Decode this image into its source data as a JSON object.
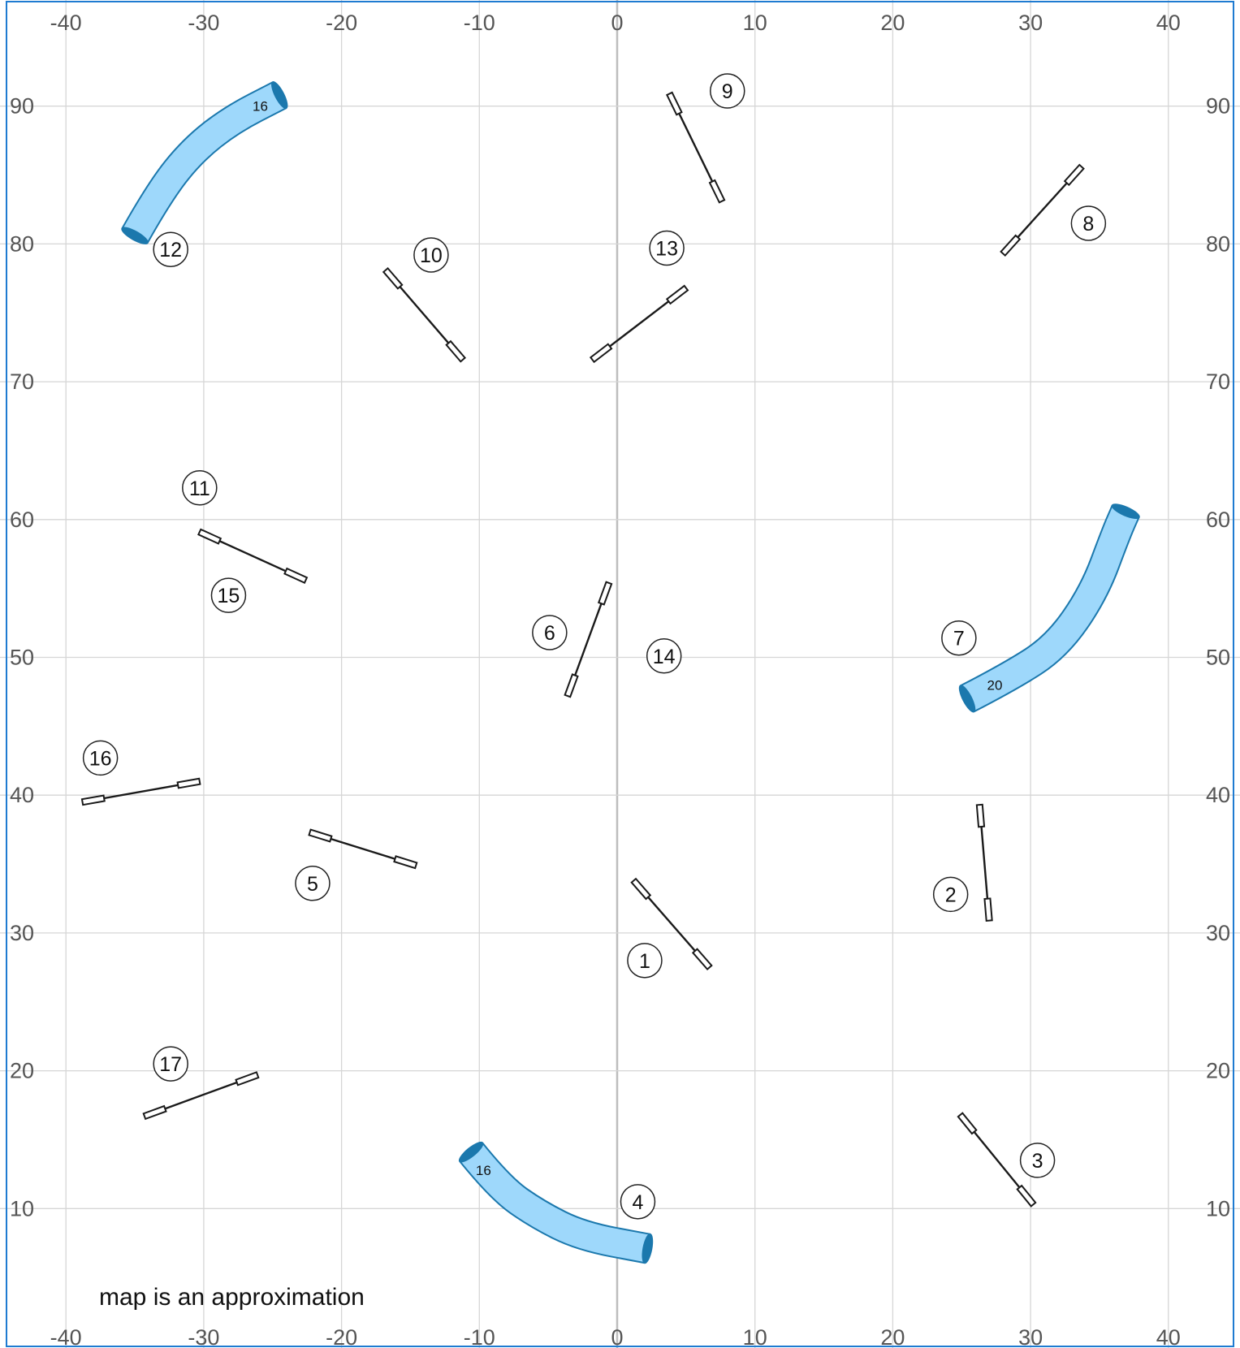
{
  "map": {
    "caption": "map is an approximation",
    "border_color": "#1f7bd1",
    "grid_color": "#d6d6d6",
    "axis_color": "#bdbdbd",
    "tunnel_fill": "#9ed8fb",
    "tunnel_stroke": "#1b78ad",
    "x_range": [
      -42,
      42
    ],
    "y_range": [
      4,
      97
    ],
    "x_ticks": [
      -40,
      -30,
      -20,
      -10,
      0,
      10,
      20,
      30,
      40
    ],
    "y_ticks": [
      10,
      20,
      30,
      40,
      50,
      60,
      70,
      80,
      90
    ],
    "x_tick_labels": [
      "-40",
      "-30",
      "-20",
      "-10",
      "0",
      "10",
      "20",
      "30",
      "40"
    ],
    "y_tick_labels": [
      "10",
      "20",
      "30",
      "40",
      "50",
      "60",
      "70",
      "80",
      "90"
    ]
  },
  "jumps": [
    {
      "id": "jump-1",
      "from": [
        1.2,
        33.8
      ],
      "to": [
        6.7,
        27.5
      ]
    },
    {
      "id": "jump-2",
      "from": [
        26.3,
        39.3
      ],
      "to": [
        27.0,
        30.9
      ]
    },
    {
      "id": "jump-3",
      "from": [
        24.9,
        16.8
      ],
      "to": [
        30.2,
        10.3
      ]
    },
    {
      "id": "jump-5",
      "from": [
        -22.3,
        37.3
      ],
      "to": [
        -14.6,
        34.9
      ]
    },
    {
      "id": "jump-6",
      "from": [
        -0.6,
        55.4
      ],
      "to": [
        -3.6,
        47.2
      ]
    },
    {
      "id": "jump-8",
      "from": [
        33.7,
        85.6
      ],
      "to": [
        28.0,
        79.3
      ]
    },
    {
      "id": "jump-9",
      "from": [
        3.8,
        90.9
      ],
      "to": [
        7.6,
        83.1
      ]
    },
    {
      "id": "jump-10",
      "from": [
        -16.8,
        78.1
      ],
      "to": [
        -11.2,
        71.6
      ]
    },
    {
      "id": "jump-11-15",
      "from": [
        -30.3,
        59.1
      ],
      "to": [
        -22.6,
        55.6
      ]
    },
    {
      "id": "jump-13",
      "from": [
        5.0,
        76.8
      ],
      "to": [
        -1.8,
        71.6
      ]
    },
    {
      "id": "jump-16",
      "from": [
        -38.8,
        39.5
      ],
      "to": [
        -30.3,
        41.0
      ]
    },
    {
      "id": "jump-17",
      "from": [
        -34.3,
        16.7
      ],
      "to": [
        -26.1,
        19.7
      ]
    }
  ],
  "tunnels": [
    {
      "id": "tunnel-12",
      "length_label": "16",
      "label_at": [
        -25.9,
        90.0
      ],
      "path": [
        [
          -35.0,
          80.6
        ],
        [
          -33.2,
          83.8
        ],
        [
          -30.8,
          86.8
        ],
        [
          -28.0,
          89.0
        ],
        [
          -24.5,
          90.8
        ]
      ]
    },
    {
      "id": "tunnel-4",
      "length_label": "16",
      "label_at": [
        -9.7,
        12.8
      ],
      "path": [
        [
          -10.6,
          14.1
        ],
        [
          -8.5,
          11.5
        ],
        [
          -5.8,
          9.6
        ],
        [
          -2.6,
          8.0
        ],
        [
          2.2,
          7.1
        ]
      ]
    },
    {
      "id": "tunnel-7",
      "length_label": "20",
      "label_at": [
        27.4,
        48.0
      ],
      "path": [
        [
          25.4,
          47.0
        ],
        [
          28.5,
          48.6
        ],
        [
          31.9,
          50.8
        ],
        [
          34.6,
          54.7
        ],
        [
          36.2,
          59.0
        ],
        [
          36.9,
          60.6
        ]
      ]
    }
  ],
  "markers": [
    {
      "id": "marker-1",
      "label": "1",
      "at": [
        2.0,
        28.0
      ]
    },
    {
      "id": "marker-2",
      "label": "2",
      "at": [
        24.2,
        32.8
      ]
    },
    {
      "id": "marker-3",
      "label": "3",
      "at": [
        30.5,
        13.5
      ]
    },
    {
      "id": "marker-4",
      "label": "4",
      "at": [
        1.5,
        10.5
      ]
    },
    {
      "id": "marker-5",
      "label": "5",
      "at": [
        -22.1,
        33.6
      ]
    },
    {
      "id": "marker-6",
      "label": "6",
      "at": [
        -4.9,
        51.8
      ]
    },
    {
      "id": "marker-7",
      "label": "7",
      "at": [
        24.8,
        51.4
      ]
    },
    {
      "id": "marker-8",
      "label": "8",
      "at": [
        34.2,
        81.5
      ]
    },
    {
      "id": "marker-9",
      "label": "9",
      "at": [
        8.0,
        91.1
      ]
    },
    {
      "id": "marker-10",
      "label": "10",
      "at": [
        -13.5,
        79.2
      ]
    },
    {
      "id": "marker-11",
      "label": "11",
      "at": [
        -30.3,
        62.3
      ]
    },
    {
      "id": "marker-12",
      "label": "12",
      "at": [
        -32.4,
        79.6
      ]
    },
    {
      "id": "marker-13",
      "label": "13",
      "at": [
        3.6,
        79.7
      ]
    },
    {
      "id": "marker-14",
      "label": "14",
      "at": [
        3.4,
        50.1
      ]
    },
    {
      "id": "marker-15",
      "label": "15",
      "at": [
        -28.2,
        54.5
      ]
    },
    {
      "id": "marker-16",
      "label": "16",
      "at": [
        -37.5,
        42.7
      ]
    },
    {
      "id": "marker-17",
      "label": "17",
      "at": [
        -32.4,
        20.5
      ]
    }
  ]
}
